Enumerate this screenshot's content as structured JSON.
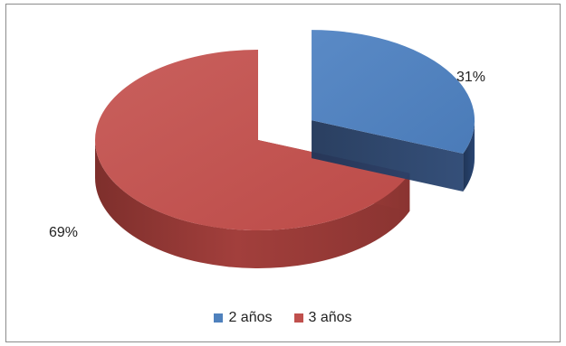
{
  "chart_data": {
    "type": "pie",
    "title": "",
    "categories": [
      "2 años",
      "3 años"
    ],
    "values": [
      31,
      69
    ],
    "value_labels": [
      "31%",
      "69%"
    ],
    "colors": [
      "#4f81bd",
      "#c0504d"
    ],
    "legend_position": "bottom",
    "style": "3d-exploded"
  }
}
